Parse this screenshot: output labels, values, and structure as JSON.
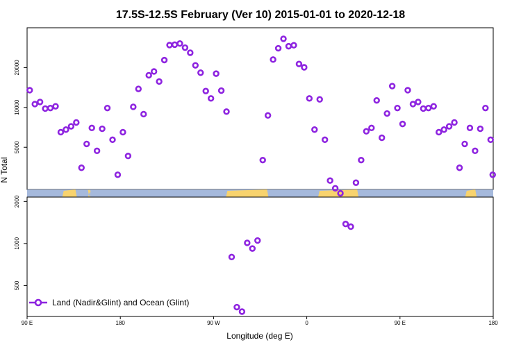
{
  "chart_data": {
    "type": "scatter",
    "title": "17.5S-12.5S February (Ver 10)   2015-01-01 to 2020-12-18",
    "xlabel": "Longitude (deg E)",
    "ylabel": "N Total",
    "x_ticks": [
      {
        "value": 90,
        "label": "90 E"
      },
      {
        "value": 180,
        "label": "180"
      },
      {
        "value": 270,
        "label": "90 W"
      },
      {
        "value": 360,
        "label": "0"
      },
      {
        "value": 450,
        "label": "90 E"
      },
      {
        "value": 540,
        "label": "180"
      }
    ],
    "xlim": [
      90,
      540
    ],
    "y_scale": "log",
    "upper_panel": {
      "ylim": [
        2400,
        40000
      ],
      "y_ticks": [
        {
          "value": 5000,
          "label": "5000"
        },
        {
          "value": 10000,
          "label": "10000"
        },
        {
          "value": 20000,
          "label": "20000"
        }
      ]
    },
    "lower_panel": {
      "ylim": [
        300,
        2150
      ],
      "y_ticks": [
        {
          "value": 500,
          "label": "500"
        },
        {
          "value": 1000,
          "label": "1000"
        },
        {
          "value": 2000,
          "label": "2000"
        }
      ]
    },
    "land_mask": {
      "ocean_color": "#a5b9dc",
      "land_color": "#f8d36e",
      "land_segments": [
        [
          124,
          138
        ],
        [
          150,
          151
        ],
        [
          149,
          150
        ],
        [
          282,
          323
        ],
        [
          371,
          410
        ],
        [
          513,
          524
        ]
      ]
    },
    "series": [
      {
        "name": "Land (Nadir&Glint) and Ocean (Glint)",
        "color": "#8e24e0",
        "x": [
          92.5,
          97.5,
          102.5,
          107.5,
          112.5,
          117.5,
          122.5,
          127.5,
          132.5,
          137.5,
          142.5,
          147.5,
          152.5,
          157.5,
          162.5,
          167.5,
          172.5,
          177.5,
          182.5,
          187.5,
          192.5,
          197.5,
          202.5,
          207.5,
          212.5,
          217.5,
          222.5,
          227.5,
          232.5,
          237.5,
          242.5,
          247.5,
          252.5,
          257.5,
          262.5,
          267.5,
          272.5,
          277.5,
          282.5,
          287.5,
          292.5,
          297.5,
          302.5,
          307.5,
          312.5,
          317.5,
          322.5,
          327.5,
          332.5,
          337.5,
          342.5,
          347.5,
          352.5,
          357.5,
          362.5,
          367.5,
          372.5,
          377.5,
          382.5,
          387.5,
          392.5,
          397.5,
          402.5,
          407.5,
          412.5,
          417.5,
          422.5,
          427.5,
          432.5,
          437.5,
          442.5,
          447.5,
          452.5,
          457.5,
          462.5,
          467.5,
          472.5,
          477.5,
          482.5,
          487.5,
          492.5,
          497.5,
          502.5,
          507.5,
          512.5,
          517.5,
          522.5,
          527.5,
          532.5,
          537.5
        ],
        "y": [
          13500,
          10600,
          11000,
          9800,
          9900,
          10200,
          6500,
          6800,
          7200,
          7700,
          3500,
          5300,
          7000,
          4700,
          6900,
          9900,
          5700,
          3100,
          6500,
          4300,
          10100,
          13800,
          8900,
          17500,
          18700,
          15700,
          22800,
          29600,
          29800,
          30400,
          28300,
          25900,
          20800,
          18300,
          13300,
          11700,
          18000,
          13400,
          9300,
          800,
          350,
          325,
          1010,
          920,
          1050,
          4000,
          8700,
          23000,
          28000,
          33000,
          29000,
          29500,
          21300,
          20100,
          11700,
          6800,
          11500,
          5700,
          2800,
          2450,
          2250,
          1380,
          1320,
          2700,
          4000,
          6600,
          7000,
          11300,
          5900,
          9000,
          14500,
          9900,
          7500,
          13500,
          10600,
          11000,
          9800,
          9900,
          10200,
          6500,
          6800,
          7200,
          7700,
          3500,
          5300,
          7000,
          4700,
          6900,
          9900,
          5700
        ]
      }
    ],
    "extra_points": [
      {
        "x": 539.5,
        "y": 3100
      }
    ],
    "legend": {
      "placement": "bottom-left",
      "label": "Land (Nadir&Glint) and Ocean (Glint)"
    }
  }
}
